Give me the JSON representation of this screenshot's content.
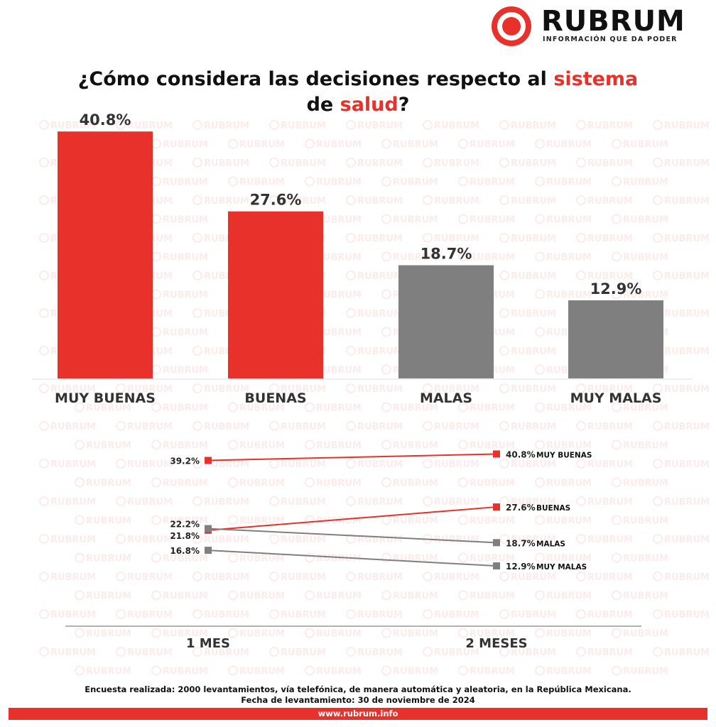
{
  "brand": {
    "name": "RUBRUM",
    "tagline": "INFORMACIÓN QUE DA PODER",
    "watermark": "RUBRUM",
    "accent": "#e8312a",
    "gray": "#7f7f7f"
  },
  "title": {
    "part1": "¿Cómo considera las decisiones respecto al ",
    "hl1": "sistema",
    "part2": "de ",
    "hl2": "salud",
    "part3": "?"
  },
  "chart_data": [
    {
      "type": "bar",
      "categories": [
        "MUY BUENAS",
        "BUENAS",
        "MALAS",
        "MUY MALAS"
      ],
      "values": [
        40.8,
        27.6,
        18.7,
        12.9
      ],
      "labels": [
        "40.8%",
        "27.6%",
        "18.7%",
        "12.9%"
      ],
      "colors": [
        "#e8312a",
        "#e8312a",
        "#7f7f7f",
        "#7f7f7f"
      ],
      "ylim": [
        0,
        42
      ]
    },
    {
      "type": "line",
      "x": [
        "1 MES",
        "2 MESES"
      ],
      "series": [
        {
          "name": "MUY BUENAS",
          "values": [
            39.2,
            40.8
          ],
          "labels": [
            "39.2%",
            "40.8%"
          ],
          "color": "#e8312a"
        },
        {
          "name": "BUENAS",
          "values": [
            21.8,
            27.6
          ],
          "labels": [
            "21.8%",
            "27.6%"
          ],
          "color": "#e8312a"
        },
        {
          "name": "MALAS",
          "values": [
            22.2,
            18.7
          ],
          "labels": [
            "22.2%",
            "18.7%"
          ],
          "color": "#7f7f7f"
        },
        {
          "name": "MUY MALAS",
          "values": [
            16.8,
            12.9
          ],
          "labels": [
            "16.8%",
            "12.9%"
          ],
          "color": "#7f7f7f"
        }
      ]
    }
  ],
  "footer": {
    "note1": "Encuesta realizada: 2000 levantamientos, vía telefónica, de manera automática y aleatoria, en  la República Mexicana.",
    "note2": "Fecha de levantamiento: 30 de noviembre de 2024",
    "url": "www.rubrum.info"
  }
}
